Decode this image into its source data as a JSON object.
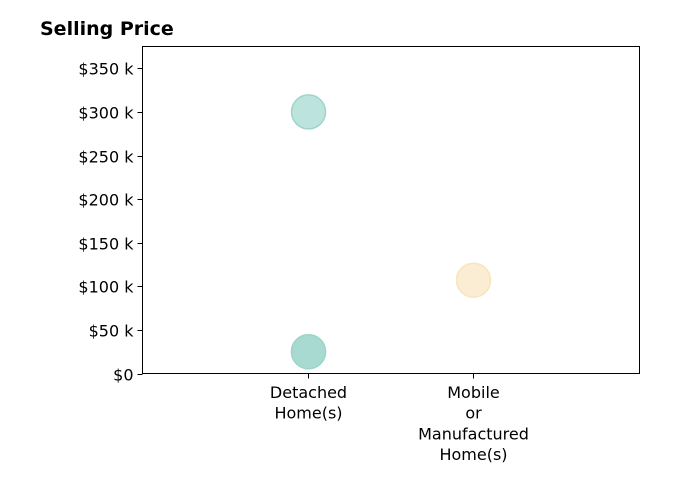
{
  "chart_data": {
    "type": "scatter",
    "title": "Selling Price",
    "xlabel": "",
    "ylabel": "",
    "categories": [
      [
        "Detached",
        "Home(s)"
      ],
      [
        "Mobile",
        "or",
        "Manufactured",
        "Home(s)"
      ]
    ],
    "y_ticks": [
      {
        "value": 0,
        "label": "$0"
      },
      {
        "value": 50000,
        "label": "$50 k"
      },
      {
        "value": 100000,
        "label": "$100 k"
      },
      {
        "value": 150000,
        "label": "$150 k"
      },
      {
        "value": 200000,
        "label": "$200 k"
      },
      {
        "value": 250000,
        "label": "$250 k"
      },
      {
        "value": 300000,
        "label": "$300 k"
      },
      {
        "value": 350000,
        "label": "$350 k"
      }
    ],
    "ylim": [
      0,
      375000
    ],
    "grid": false,
    "points": [
      {
        "category": 0,
        "y": 300000,
        "color": "#9dd5cd"
      },
      {
        "category": 0,
        "y": 25000,
        "color": "#9dd5cd"
      },
      {
        "category": 0,
        "y": 25000,
        "color": "#9dd5cd"
      },
      {
        "category": 1,
        "y": 107000,
        "color": "#f9e4be"
      }
    ]
  },
  "colors": {
    "detached": "#9dd5cd",
    "mobile": "#f9e4be",
    "axis": "#000000"
  }
}
